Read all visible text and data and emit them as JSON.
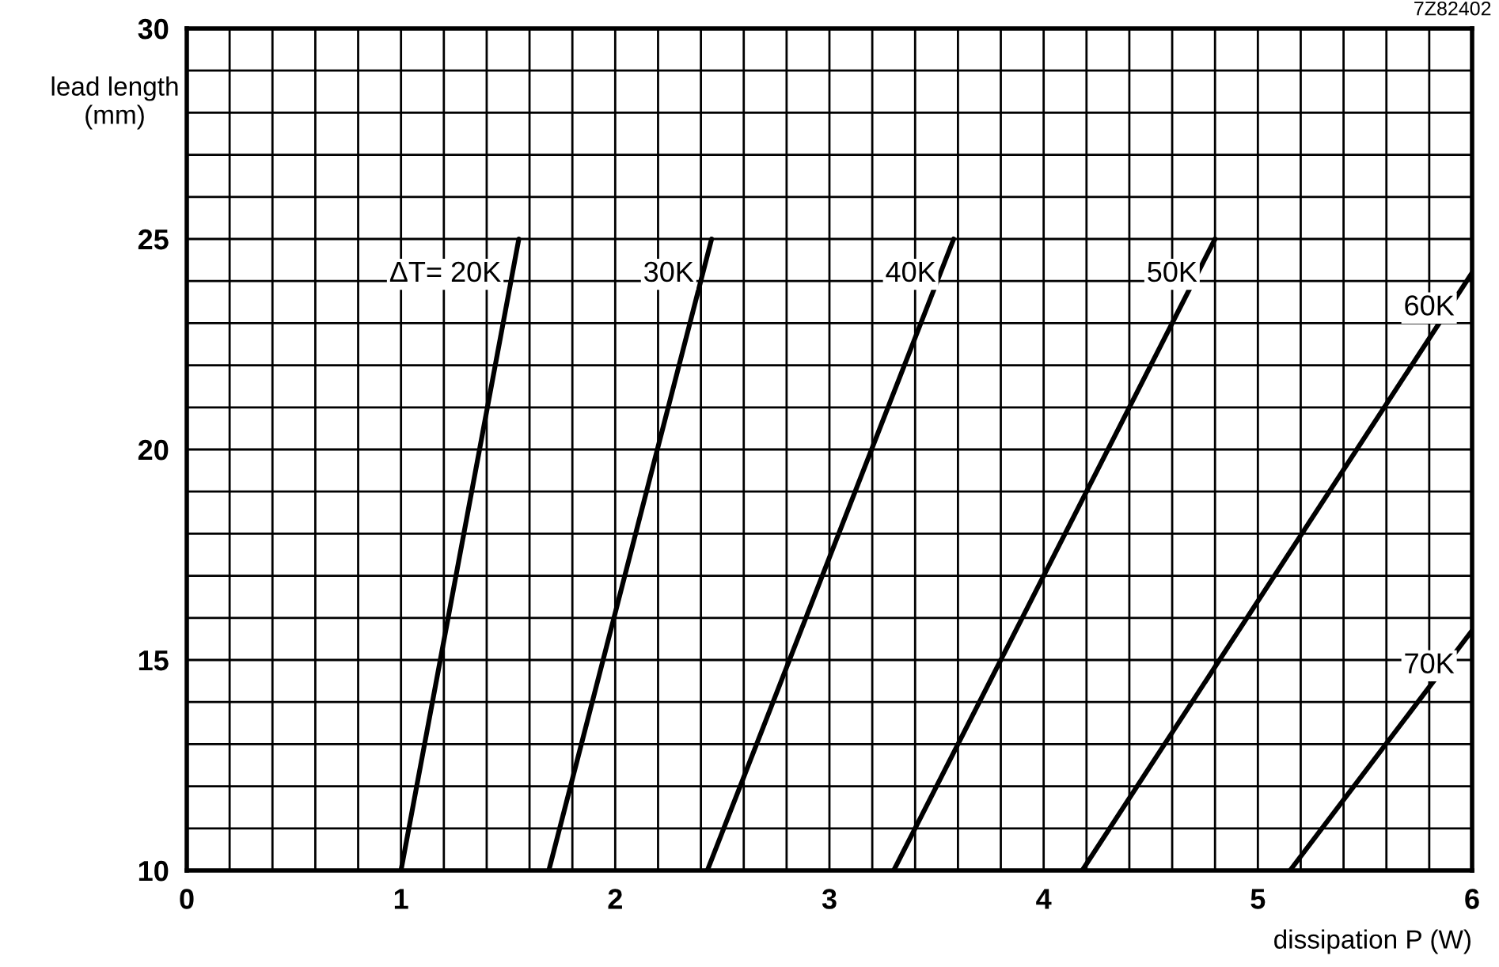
{
  "chart_data": {
    "type": "line",
    "xlabel": "dissipation P (W)",
    "ylabel": "lead length\n(mm)",
    "annotations": [
      "7Z82402"
    ],
    "series": [
      {
        "name": "ΔT= 20K",
        "color": "#000000",
        "x": [
          1.0,
          1.55
        ],
        "values": [
          10,
          25
        ]
      },
      {
        "name": "30K",
        "color": "#000000",
        "x": [
          1.69,
          2.45
        ],
        "values": [
          10,
          25
        ]
      },
      {
        "name": "40K",
        "color": "#000000",
        "x": [
          2.43,
          3.58
        ],
        "values": [
          10,
          25
        ]
      },
      {
        "name": "50K",
        "color": "#000000",
        "x": [
          3.3,
          4.8
        ],
        "values": [
          10,
          25
        ]
      },
      {
        "name": "60K",
        "color": "#000000",
        "x": [
          4.18,
          6.0
        ],
        "values": [
          10,
          24.2
        ]
      },
      {
        "name": "70K",
        "color": "#000000",
        "x": [
          5.15,
          6.0
        ],
        "values": [
          10,
          15.7
        ]
      }
    ],
    "xlim": [
      0,
      6
    ],
    "ylim": [
      10,
      30
    ],
    "xticks": [
      0,
      {
        "value": 0.2,
        "label": null
      },
      {
        "value": 0.4,
        "label": null
      },
      {
        "value": 0.6,
        "label": null
      },
      {
        "value": 0.8,
        "label": null
      },
      1,
      {
        "value": 1.2,
        "label": null
      },
      {
        "value": 1.4,
        "label": null
      },
      {
        "value": 1.6,
        "label": null
      },
      {
        "value": 1.8,
        "label": null
      },
      2,
      {
        "value": 2.2,
        "label": null
      },
      {
        "value": 2.4,
        "label": null
      },
      {
        "value": 2.6,
        "label": null
      },
      {
        "value": 2.8,
        "label": null
      },
      3,
      {
        "value": 3.2,
        "label": null
      },
      {
        "value": 3.4,
        "label": null
      },
      {
        "value": 3.6,
        "label": null
      },
      {
        "value": 3.8,
        "label": null
      },
      4,
      {
        "value": 4.2,
        "label": null
      },
      {
        "value": 4.4,
        "label": null
      },
      {
        "value": 4.6,
        "label": null
      },
      {
        "value": 4.8,
        "label": null
      },
      5,
      {
        "value": 5.2,
        "label": null
      },
      {
        "value": 5.4,
        "label": null
      },
      {
        "value": 5.6,
        "label": null
      },
      {
        "value": 5.8,
        "label": null
      },
      6
    ],
    "yticks": [
      10,
      {
        "value": 11,
        "label": null
      },
      {
        "value": 12,
        "label": null
      },
      {
        "value": 13,
        "label": null
      },
      {
        "value": 14,
        "label": null
      },
      15,
      {
        "value": 16,
        "label": null
      },
      {
        "value": 17,
        "label": null
      },
      {
        "value": 18,
        "label": null
      },
      {
        "value": 19,
        "label": null
      },
      20,
      {
        "value": 21,
        "label": null
      },
      {
        "value": 22,
        "label": null
      },
      {
        "value": 23,
        "label": null
      },
      {
        "value": 24,
        "label": null
      },
      25,
      {
        "value": 26,
        "label": null
      },
      {
        "value": 27,
        "label": null
      },
      {
        "value": 28,
        "label": null
      },
      {
        "value": 29,
        "label": null
      },
      30
    ],
    "grid": true,
    "legend": false,
    "line_style": "solid",
    "marker": "none"
  }
}
